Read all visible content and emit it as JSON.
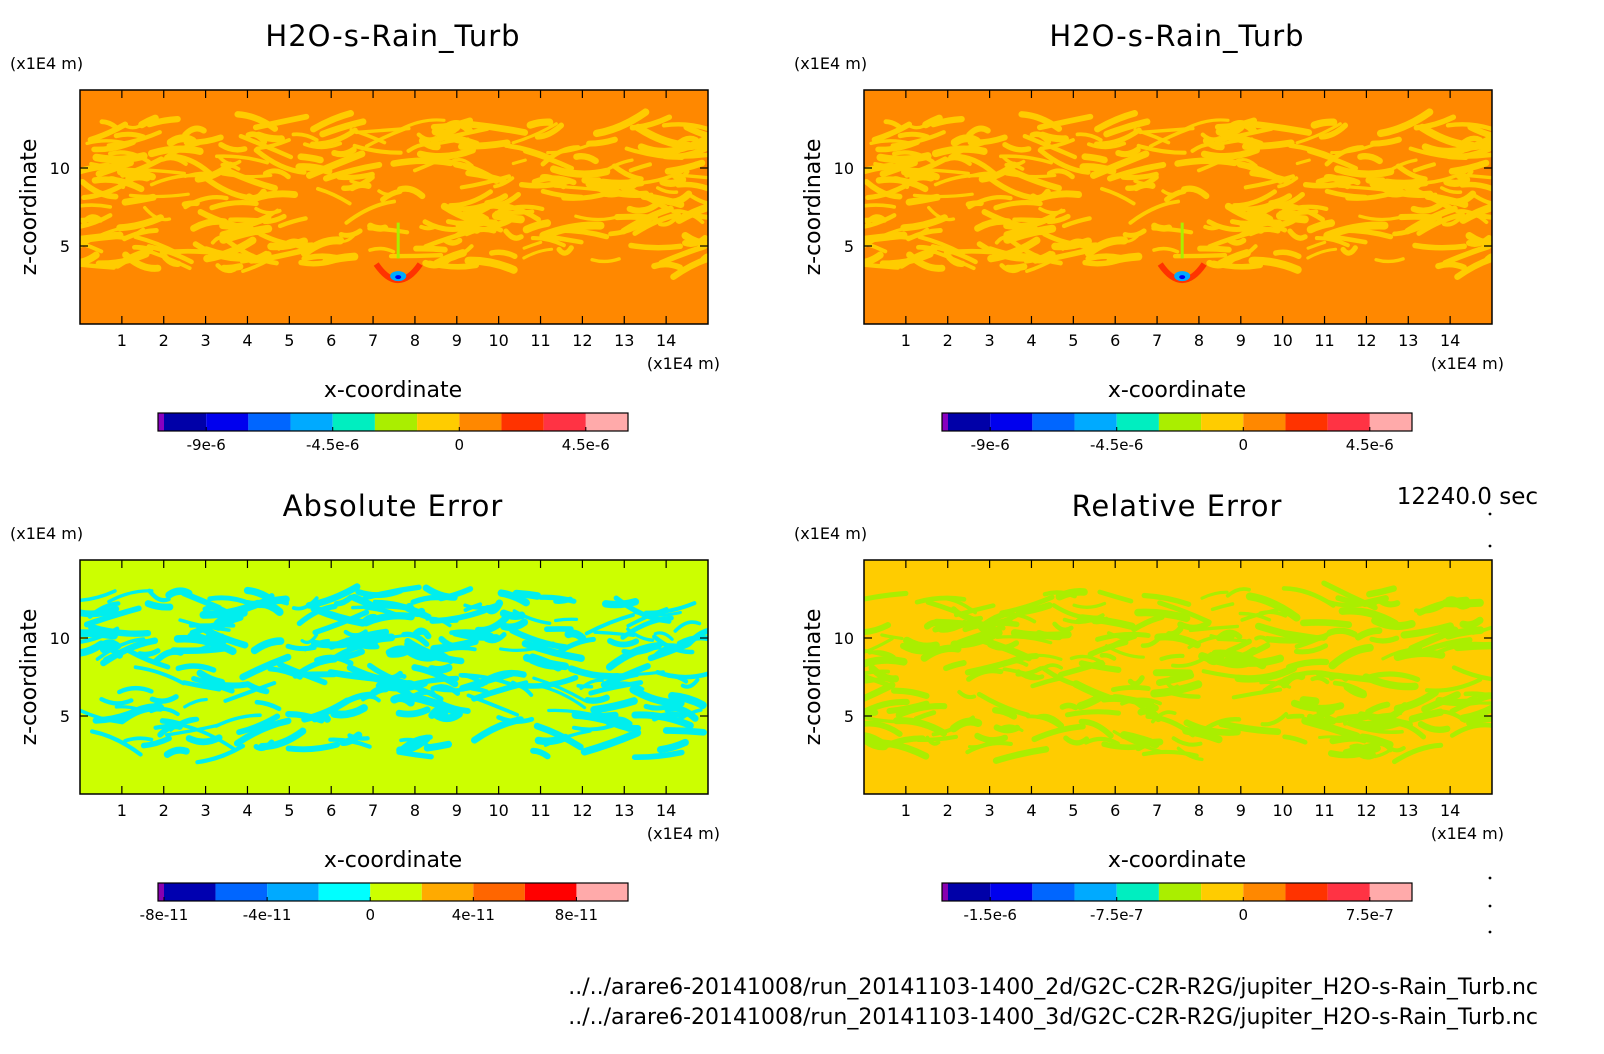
{
  "chart_data": [
    {
      "type": "heatmap",
      "title": "H2O-s-Rain_Turb",
      "xlabel": "x-coordinate",
      "ylabel": "z-coordinate",
      "x_unit": "(x1E4 m)",
      "y_unit": "(x1E4 m)",
      "x_ticks": [
        "1",
        "2",
        "3",
        "4",
        "5",
        "6",
        "7",
        "8",
        "9",
        "10",
        "11",
        "12",
        "13",
        "14"
      ],
      "y_ticks": [
        "5",
        "10"
      ],
      "xlim": [
        0,
        15
      ],
      "ylim": [
        0,
        15
      ],
      "background_color": "#ff8800",
      "pattern_color": "#ffcc00",
      "pattern_band": [
        3.5,
        13
      ],
      "colorbar": {
        "colors": [
          "#8800c0",
          "#0000a8",
          "#0000ee",
          "#0066ff",
          "#00aaff",
          "#00eec0",
          "#aaee00",
          "#ffcc00",
          "#ff8800",
          "#ff3300",
          "#ff3344",
          "#ffaaaa"
        ],
        "tick_labels": [
          "-9e-6",
          "-4.5e-6",
          "0",
          "4.5e-6"
        ]
      }
    },
    {
      "type": "heatmap",
      "title": "H2O-s-Rain_Turb",
      "xlabel": "x-coordinate",
      "ylabel": "z-coordinate",
      "x_unit": "(x1E4 m)",
      "y_unit": "(x1E4 m)",
      "x_ticks": [
        "1",
        "2",
        "3",
        "4",
        "5",
        "6",
        "7",
        "8",
        "9",
        "10",
        "11",
        "12",
        "13",
        "14"
      ],
      "y_ticks": [
        "5",
        "10"
      ],
      "xlim": [
        0,
        15
      ],
      "ylim": [
        0,
        15
      ],
      "background_color": "#ff8800",
      "pattern_color": "#ffcc00",
      "pattern_band": [
        3.5,
        13
      ],
      "colorbar": {
        "colors": [
          "#8800c0",
          "#0000a8",
          "#0000ee",
          "#0066ff",
          "#00aaff",
          "#00eec0",
          "#aaee00",
          "#ffcc00",
          "#ff8800",
          "#ff3300",
          "#ff3344",
          "#ffaaaa"
        ],
        "tick_labels": [
          "-9e-6",
          "-4.5e-6",
          "0",
          "4.5e-6"
        ]
      }
    },
    {
      "type": "heatmap",
      "title": "Absolute Error",
      "xlabel": "x-coordinate",
      "ylabel": "z-coordinate",
      "x_unit": "(x1E4 m)",
      "y_unit": "(x1E4 m)",
      "x_ticks": [
        "1",
        "2",
        "3",
        "4",
        "5",
        "6",
        "7",
        "8",
        "9",
        "10",
        "11",
        "12",
        "13",
        "14"
      ],
      "y_ticks": [
        "5",
        "10"
      ],
      "xlim": [
        0,
        15
      ],
      "ylim": [
        0,
        15
      ],
      "background_color": "#ccff00",
      "pattern_color": "#00eeee",
      "pattern_band": [
        2.5,
        13
      ],
      "colorbar": {
        "colors": [
          "#8800b0",
          "#0000b0",
          "#0066ff",
          "#00aaff",
          "#00ffff",
          "#ccff00",
          "#ffaa00",
          "#ff6600",
          "#ff0000",
          "#ffaaaa"
        ],
        "tick_labels": [
          "-8e-11",
          "-4e-11",
          "0",
          "4e-11",
          "8e-11"
        ]
      }
    },
    {
      "type": "heatmap",
      "title": "Relative Error",
      "xlabel": "x-coordinate",
      "ylabel": "z-coordinate",
      "x_unit": "(x1E4 m)",
      "y_unit": "(x1E4 m)",
      "x_ticks": [
        "1",
        "2",
        "3",
        "4",
        "5",
        "6",
        "7",
        "8",
        "9",
        "10",
        "11",
        "12",
        "13",
        "14"
      ],
      "y_ticks": [
        "5",
        "10"
      ],
      "xlim": [
        0,
        15
      ],
      "ylim": [
        0,
        15
      ],
      "background_color": "#ffcc00",
      "pattern_color": "#aaee00",
      "pattern_band": [
        2.5,
        13
      ],
      "colorbar": {
        "colors": [
          "#8800b0",
          "#0000a8",
          "#0000ee",
          "#0066ff",
          "#00aaff",
          "#00eec0",
          "#aaee00",
          "#ffcc00",
          "#ff8800",
          "#ff3300",
          "#ff3344",
          "#ffaaaa"
        ],
        "tick_labels": [
          "-1.5e-6",
          "-7.5e-7",
          "0",
          "7.5e-7"
        ]
      }
    }
  ],
  "time_label": "12240.0 sec",
  "file_paths": [
    "../../arare6-20141008/run_20141103-1400_2d/G2C-C2R-R2G/jupiter_H2O-s-Rain_Turb.nc",
    "../../arare6-20141008/run_20141103-1400_3d/G2C-C2R-R2G/jupiter_H2O-s-Rain_Turb.nc"
  ]
}
